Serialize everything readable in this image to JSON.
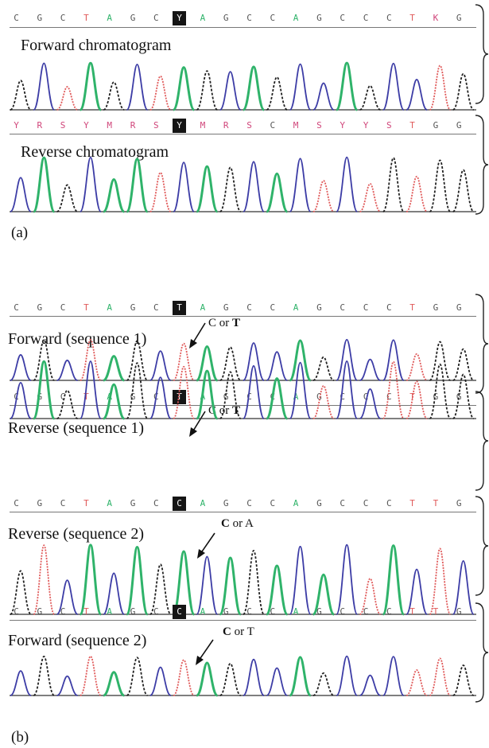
{
  "colors": {
    "A": "#2fb36a",
    "C": "#3d3da6",
    "G": "#222222",
    "T": "#e05a5a",
    "ambiguous": "#d0457a",
    "separator": "#777777"
  },
  "panel_a": {
    "caption": "(a)",
    "tracks": [
      {
        "label": "Forward chromatogram",
        "bases": [
          "C",
          "G",
          "C",
          "T",
          "A",
          "G",
          "C",
          "Y",
          "A",
          "G",
          "C",
          "C",
          "A",
          "G",
          "C",
          "C",
          "C",
          "T",
          "K",
          "G"
        ],
        "highlight": 7,
        "peaks": [
          "G",
          "C",
          "T",
          "A",
          "G",
          "C",
          "T",
          "A",
          "G",
          "C",
          "A",
          "G",
          "C",
          "C",
          "A",
          "G",
          "C",
          "C",
          "T",
          "G"
        ]
      },
      {
        "label": "Reverse chromatogram",
        "bases": [
          "Y",
          "R",
          "S",
          "Y",
          "M",
          "R",
          "S",
          "Y",
          "M",
          "R",
          "S",
          "C",
          "M",
          "S",
          "Y",
          "Y",
          "S",
          "T",
          "G",
          "G"
        ],
        "highlight": 7,
        "peaks": [
          "C",
          "A",
          "G",
          "C",
          "A",
          "A",
          "T",
          "C",
          "A",
          "G",
          "C",
          "A",
          "C",
          "T",
          "C",
          "T",
          "G",
          "T",
          "G",
          "G"
        ]
      }
    ]
  },
  "panel_b": {
    "caption": "(b)",
    "tracks": [
      {
        "label": "Forward (sequence 1)",
        "annotation": {
          "prefix": "C or ",
          "bold": "T",
          "suffix": ""
        },
        "bases": [
          "C",
          "G",
          "C",
          "T",
          "A",
          "G",
          "C",
          "T",
          "A",
          "G",
          "C",
          "C",
          "A",
          "G",
          "C",
          "C",
          "C",
          "T",
          "G",
          "G"
        ],
        "highlight": 7,
        "peaks": [
          "C",
          "G",
          "C",
          "T",
          "A",
          "G",
          "C",
          "T",
          "A",
          "G",
          "C",
          "C",
          "A",
          "G",
          "C",
          "C",
          "C",
          "T",
          "G",
          "G"
        ]
      },
      {
        "label": "Reverse (sequence 1)",
        "annotation": {
          "prefix": "C or ",
          "bold": "T",
          "suffix": ""
        },
        "bases": [
          "C",
          "G",
          "C",
          "T",
          "A",
          "G",
          "C",
          "T",
          "A",
          "G",
          "C",
          "C",
          "A",
          "G",
          "C",
          "C",
          "C",
          "T",
          "G",
          "G"
        ],
        "highlight": 7,
        "peaks": [
          "C",
          "A",
          "G",
          "C",
          "A",
          "G",
          "C",
          "T",
          "A",
          "G",
          "C",
          "A",
          "C",
          "T",
          "C",
          "C",
          "T",
          "T",
          "G",
          "G"
        ]
      },
      {
        "label": "Reverse (sequence 2)",
        "annotation": {
          "prefix": "",
          "bold": "C",
          "suffix": " or A"
        },
        "bases": [
          "C",
          "G",
          "C",
          "T",
          "A",
          "G",
          "C",
          "C",
          "A",
          "G",
          "C",
          "C",
          "A",
          "G",
          "C",
          "C",
          "C",
          "T",
          "T",
          "G"
        ],
        "highlight": 7,
        "peaks": [
          "G",
          "T",
          "C",
          "A",
          "C",
          "A",
          "G",
          "A",
          "C",
          "A",
          "G",
          "A",
          "C",
          "A",
          "C",
          "T",
          "A",
          "C",
          "T",
          "C"
        ]
      },
      {
        "label": "Forward (sequence 2)",
        "annotation": {
          "prefix": "",
          "bold": "C",
          "suffix": " or T"
        },
        "bases": [
          "C",
          "G",
          "C",
          "T",
          "A",
          "G",
          "C",
          "C",
          "A",
          "G",
          "C",
          "C",
          "A",
          "G",
          "C",
          "C",
          "C",
          "T",
          "T",
          "G"
        ],
        "highlight": 7,
        "peaks": [
          "C",
          "G",
          "C",
          "T",
          "A",
          "G",
          "C",
          "T",
          "A",
          "G",
          "C",
          "C",
          "A",
          "G",
          "C",
          "C",
          "C",
          "T",
          "T",
          "G"
        ]
      }
    ]
  }
}
